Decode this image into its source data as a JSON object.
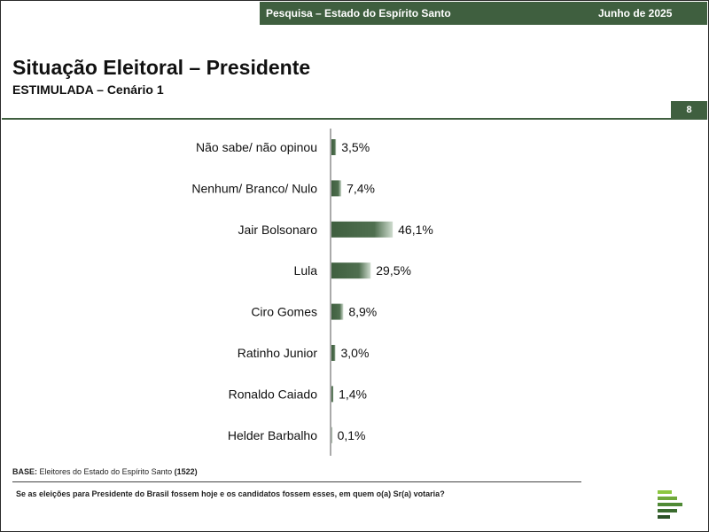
{
  "header": {
    "survey_label": "Pesquisa – Estado do Espírito Santo",
    "date": "Junho de 2025"
  },
  "title": "Situação Eleitoral – Presidente",
  "subtitle": "ESTIMULADA – Cenário 1",
  "page_number": "8",
  "chart_data": {
    "type": "bar",
    "orientation": "horizontal",
    "categories": [
      "Não sabe/ não opinou",
      "Nenhum/ Branco/ Nulo",
      "Jair Bolsonaro",
      "Lula",
      "Ciro Gomes",
      "Ratinho Junior",
      "Ronaldo Caiado",
      "Helder Barbalho"
    ],
    "values": [
      3.5,
      7.4,
      46.1,
      29.5,
      8.9,
      3.0,
      1.4,
      0.1
    ],
    "value_labels": [
      "3,5%",
      "7,4%",
      "46,1%",
      "29,5%",
      "8,9%",
      "3,0%",
      "1,4%",
      "0,1%"
    ],
    "xlim": [
      0,
      100
    ],
    "grid": false,
    "legend": "none",
    "colors": {
      "bar_dark": "#3f5f3f",
      "bar_light": "#cfdccf"
    }
  },
  "footer": {
    "base_label": "BASE:",
    "base_text": "Eleitores do Estado do Espírito Santo",
    "base_count": "(1522)",
    "question": "Se as eleições para Presidente do Brasil fossem hoje e os candidatos fossem esses, em quem o(a) Sr(a) votaria?"
  },
  "logo_icon": "stacked-bars-logo-icon"
}
